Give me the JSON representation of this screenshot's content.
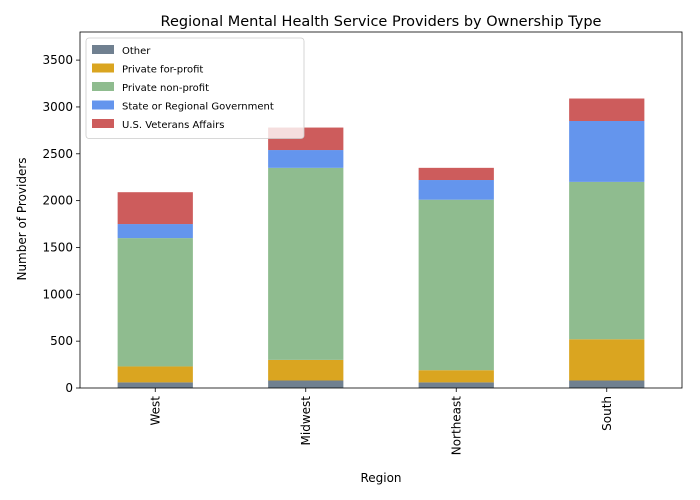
{
  "chart_data": {
    "type": "bar",
    "stacked": true,
    "title": "Regional Mental Health Service Providers by Ownership Type",
    "xlabel": "Region",
    "ylabel": "Number of Providers",
    "categories": [
      "West",
      "Midwest",
      "Northeast",
      "South"
    ],
    "ylim": [
      0,
      3800
    ],
    "yticks": [
      0,
      500,
      1000,
      1500,
      2000,
      2500,
      3000,
      3500
    ],
    "legend_position": "top-left",
    "grid": false,
    "series": [
      {
        "name": "Other",
        "color": "#708090",
        "values": [
          60,
          80,
          60,
          80
        ]
      },
      {
        "name": "Private for-profit",
        "color": "#daa520",
        "values": [
          170,
          220,
          130,
          440
        ]
      },
      {
        "name": "Private non-profit",
        "color": "#8fbc8f",
        "values": [
          1370,
          2050,
          1820,
          1680
        ]
      },
      {
        "name": "State or Regional Government",
        "color": "#6495ed",
        "values": [
          150,
          190,
          210,
          650
        ]
      },
      {
        "name": "U.S. Veterans Affairs",
        "color": "#cd5c5c",
        "values": [
          340,
          240,
          130,
          240
        ]
      }
    ]
  }
}
